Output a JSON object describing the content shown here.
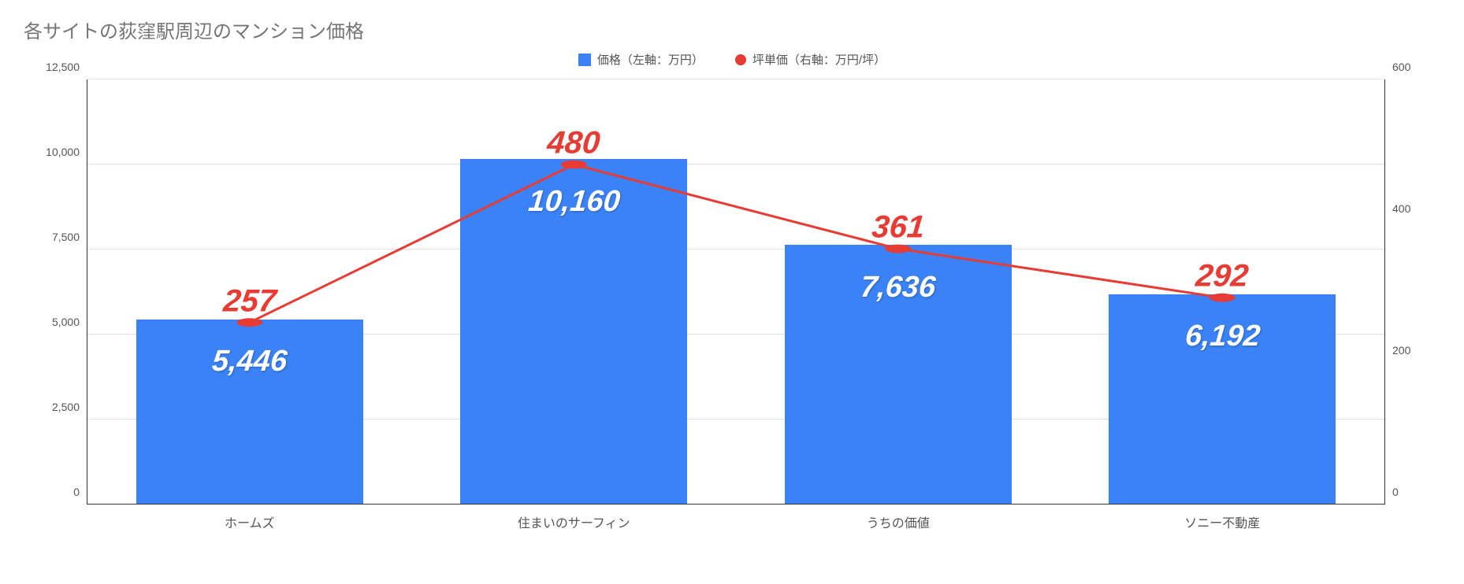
{
  "chart": {
    "type": "bar+line",
    "title": "各サイトの荻窪駅周辺のマンション価格",
    "title_color": "#757575",
    "title_fontsize": 24,
    "background_color": "#ffffff",
    "grid_color": "#e0e0e0",
    "axis_color": "#333333",
    "categories": [
      "ホームズ",
      "住まいのサーフィン",
      "うちの価値",
      "ソニー不動産"
    ],
    "x_label_fontsize": 16,
    "x_label_color": "#555555",
    "legend": {
      "items": [
        {
          "label": "価格（左軸：万円）",
          "type": "square",
          "color": "#3a82f6"
        },
        {
          "label": "坪単価（右軸：万円/坪）",
          "type": "circle",
          "color": "#e83b34"
        }
      ],
      "fontsize": 15,
      "text_color": "#555555"
    },
    "bar_series": {
      "name": "価格（左軸：万円）",
      "values": [
        5446,
        10160,
        7636,
        6192
      ],
      "value_labels": [
        "5,446",
        "10,160",
        "7,636",
        "6,192"
      ],
      "color": "#3a82f6",
      "value_label_color": "#ffffff",
      "value_label_fontsize": 38,
      "value_label_style": "italic bold",
      "bar_width": 0.7
    },
    "line_series": {
      "name": "坪単価（右軸：万円/坪）",
      "values": [
        257,
        480,
        361,
        292
      ],
      "value_labels": [
        "257",
        "480",
        "361",
        "292"
      ],
      "color": "#e83b34",
      "line_width": 3,
      "marker_radius": 6,
      "value_label_color": "#e83b34",
      "value_label_fontsize": 40,
      "value_label_style": "italic bold"
    },
    "left_axis": {
      "min": 0,
      "max": 12500,
      "tick_step": 2500,
      "tick_labels": [
        "0",
        "2,500",
        "5,000",
        "7,500",
        "10,000",
        "12,500"
      ],
      "label_fontsize": 14,
      "label_color": "#555555"
    },
    "right_axis": {
      "min": 0,
      "max": 600,
      "tick_step": 200,
      "tick_labels": [
        "0",
        "200",
        "400",
        "600"
      ],
      "label_fontsize": 14,
      "label_color": "#555555"
    }
  }
}
